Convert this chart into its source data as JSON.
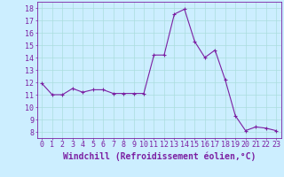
{
  "x": [
    0,
    1,
    2,
    3,
    4,
    5,
    6,
    7,
    8,
    9,
    10,
    11,
    12,
    13,
    14,
    15,
    16,
    17,
    18,
    19,
    20,
    21,
    22,
    23
  ],
  "y": [
    11.9,
    11.0,
    11.0,
    11.5,
    11.2,
    11.4,
    11.4,
    11.1,
    11.1,
    11.1,
    11.1,
    14.2,
    14.2,
    17.5,
    17.9,
    15.3,
    14.0,
    14.6,
    12.2,
    9.3,
    8.1,
    8.4,
    8.3,
    8.1
  ],
  "line_color": "#7b1fa2",
  "marker": "+",
  "marker_color": "#7b1fa2",
  "bg_color": "#cceeff",
  "grid_color": "#aadddd",
  "xlabel": "Windchill (Refroidissement éolien,°C)",
  "xlim": [
    -0.5,
    23.5
  ],
  "ylim": [
    7.5,
    18.5
  ],
  "xtick_labels": [
    "0",
    "1",
    "2",
    "3",
    "4",
    "5",
    "6",
    "7",
    "8",
    "9",
    "10",
    "11",
    "12",
    "13",
    "14",
    "15",
    "16",
    "17",
    "18",
    "19",
    "20",
    "21",
    "22",
    "23"
  ],
  "yticks": [
    8,
    9,
    10,
    11,
    12,
    13,
    14,
    15,
    16,
    17,
    18
  ],
  "label_fontsize": 7,
  "tick_fontsize": 6
}
